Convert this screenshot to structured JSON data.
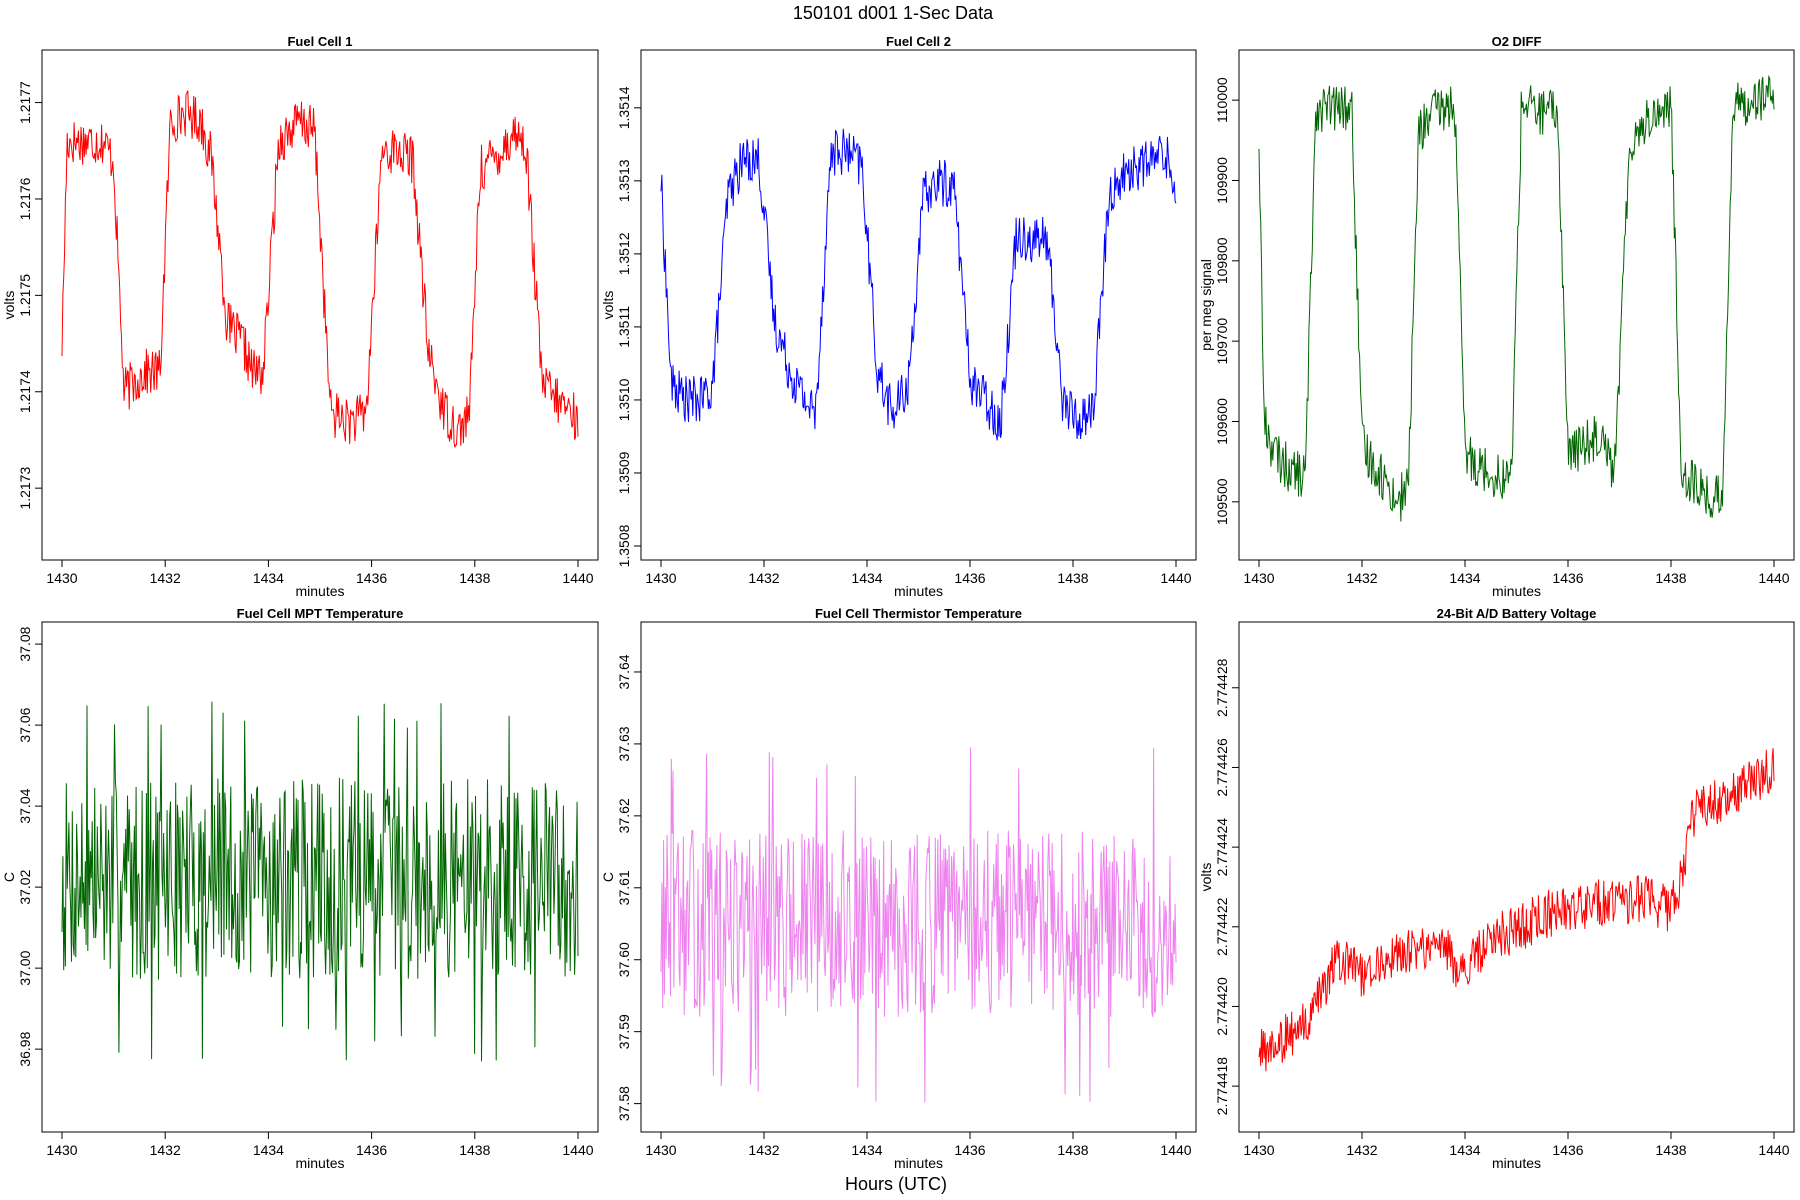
{
  "title": "150101    d001    1-Sec Data",
  "global_xlabel": "Hours (UTC)",
  "chart_data": [
    {
      "type": "line",
      "title": "Fuel Cell 1",
      "xlabel": "minutes",
      "ylabel": "volts",
      "color": "#ff0000",
      "xlim": [
        1430,
        1440
      ],
      "ylim": [
        1.21724,
        1.21774
      ],
      "xticks": [
        1430,
        1432,
        1434,
        1436,
        1438,
        1440
      ],
      "yticks": [
        1.2173,
        1.2174,
        1.2175,
        1.2176,
        1.2177
      ],
      "tick_decimals": 4,
      "series": [
        {
          "name": "Fuel Cell 1",
          "x": [
            1430,
            1430.1,
            1430.4,
            1430.8,
            1431,
            1431.2,
            1431.6,
            1431.9,
            1432.1,
            1432.4,
            1432.7,
            1432.9,
            1433.2,
            1433.5,
            1433.7,
            1433.9,
            1434.2,
            1434.6,
            1434.9,
            1435.2,
            1435.5,
            1435.7,
            1435.9,
            1436.2,
            1436.5,
            1436.8,
            1437.1,
            1437.4,
            1437.7,
            1437.9,
            1438.1,
            1438.5,
            1438.8,
            1439,
            1439.3,
            1439.6,
            1439.9,
            1440
          ],
          "values": [
            1.21745,
            1.21766,
            1.21766,
            1.21766,
            1.21764,
            1.2174,
            1.21742,
            1.21742,
            1.21768,
            1.21769,
            1.21768,
            1.21764,
            1.21747,
            1.21745,
            1.21742,
            1.21742,
            1.21766,
            1.21768,
            1.21767,
            1.21738,
            1.21737,
            1.21737,
            1.21738,
            1.21765,
            1.21765,
            1.21764,
            1.21744,
            1.21738,
            1.21736,
            1.21738,
            1.21763,
            1.21765,
            1.21767,
            1.21765,
            1.21741,
            1.21739,
            1.21738,
            1.21736
          ]
        }
      ]
    },
    {
      "type": "line",
      "title": "Fuel Cell 2",
      "xlabel": "minutes",
      "ylabel": "volts",
      "color": "#0000ff",
      "xlim": [
        1430,
        1440
      ],
      "ylim": [
        1.3508,
        1.35146
      ],
      "xticks": [
        1430,
        1432,
        1434,
        1436,
        1438,
        1440
      ],
      "yticks": [
        1.3508,
        1.3509,
        1.351,
        1.3511,
        1.3512,
        1.3513,
        1.3514
      ],
      "tick_decimals": 4,
      "series": [
        {
          "name": "Fuel Cell 2",
          "x": [
            1430,
            1430.2,
            1430.5,
            1430.8,
            1431,
            1431.3,
            1431.6,
            1431.9,
            1432.2,
            1432.5,
            1432.8,
            1433,
            1433.3,
            1433.6,
            1433.9,
            1434.2,
            1434.5,
            1434.8,
            1435.1,
            1435.4,
            1435.7,
            1436,
            1436.3,
            1436.6,
            1436.9,
            1437.2,
            1437.5,
            1437.8,
            1438.1,
            1438.4,
            1438.7,
            1439,
            1439.3,
            1439.6,
            1439.8,
            1440
          ],
          "values": [
            1.3513,
            1.35102,
            1.351,
            1.351,
            1.35102,
            1.35128,
            1.35133,
            1.35133,
            1.35111,
            1.35104,
            1.351,
            1.35098,
            1.35134,
            1.35134,
            1.35132,
            1.35104,
            1.35098,
            1.35102,
            1.35128,
            1.3513,
            1.35129,
            1.35103,
            1.351,
            1.35097,
            1.35123,
            1.35122,
            1.35122,
            1.351,
            1.35097,
            1.35099,
            1.35128,
            1.35131,
            1.35132,
            1.35133,
            1.35134,
            1.35128
          ]
        }
      ]
    },
    {
      "type": "line",
      "title": "O2 DIFF",
      "xlabel": "minutes",
      "ylabel": "per meg signal",
      "color": "#006400",
      "xlim": [
        1430,
        1440
      ],
      "ylim": [
        109445,
        110045
      ],
      "xticks": [
        1430,
        1432,
        1434,
        1436,
        1438,
        1440
      ],
      "yticks": [
        109500,
        109600,
        109700,
        109800,
        109900,
        110000
      ],
      "tick_decimals": 0,
      "series": [
        {
          "name": "O2 DIFF",
          "x": [
            1430,
            1430.1,
            1430.3,
            1430.6,
            1430.9,
            1431.1,
            1431.4,
            1431.8,
            1432,
            1432.3,
            1432.7,
            1432.9,
            1433.1,
            1433.4,
            1433.8,
            1434,
            1434.3,
            1434.7,
            1434.9,
            1435.1,
            1435.4,
            1435.8,
            1436,
            1436.3,
            1436.7,
            1436.9,
            1437.2,
            1437.6,
            1438,
            1438.2,
            1438.5,
            1438.8,
            1439,
            1439.2,
            1439.5,
            1439.8,
            1440
          ],
          "values": [
            109950,
            109600,
            109560,
            109540,
            109530,
            109990,
            109990,
            109990,
            109570,
            109540,
            109500,
            109520,
            109960,
            109985,
            109995,
            109560,
            109545,
            109530,
            109530,
            110000,
            109985,
            109985,
            109560,
            109570,
            109590,
            109530,
            109950,
            109980,
            109995,
            109540,
            109520,
            109500,
            109510,
            109990,
            110000,
            110005,
            110000
          ]
        }
      ]
    },
    {
      "type": "line",
      "title": "Fuel Cell MPT Temperature",
      "xlabel": "minutes",
      "ylabel": "C",
      "color": "#006400",
      "xlim": [
        1430,
        1440
      ],
      "ylim": [
        36.963,
        37.082
      ],
      "xticks": [
        1430,
        1432,
        1434,
        1436,
        1438,
        1440
      ],
      "yticks": [
        36.98,
        37.0,
        37.02,
        37.04,
        37.06,
        37.08
      ],
      "tick_decimals": 2,
      "noise": {
        "center": 37.022,
        "amplitude": 0.025,
        "n": 600,
        "seed": 7,
        "spike": 0.045
      },
      "series": [
        {
          "name": "Fuel Cell MPT Temperature",
          "x": [],
          "values": []
        }
      ]
    },
    {
      "type": "line",
      "title": "Fuel Cell Thermistor Temperature",
      "xlabel": "minutes",
      "ylabel": "C",
      "color": "#ee82ee",
      "xlim": [
        1430,
        1440
      ],
      "ylim": [
        37.578,
        37.645
      ],
      "xticks": [
        1430,
        1432,
        1434,
        1436,
        1438,
        1440
      ],
      "yticks": [
        37.58,
        37.59,
        37.6,
        37.61,
        37.62,
        37.63,
        37.64
      ],
      "tick_decimals": 2,
      "noise": {
        "center": 37.605,
        "amplitude": 0.013,
        "n": 600,
        "seed": 13,
        "spike": 0.025
      },
      "series": [
        {
          "name": "Fuel Cell Thermistor Temperature",
          "x": [],
          "values": []
        }
      ]
    },
    {
      "type": "line",
      "title": "24-Bit A/D Battery Voltage",
      "xlabel": "minutes",
      "ylabel": "volts",
      "color": "#ff0000",
      "xlim": [
        1430,
        1440
      ],
      "ylim": [
        2.7744172,
        2.7744293
      ],
      "xticks": [
        1430,
        1432,
        1434,
        1436,
        1438,
        1440
      ],
      "yticks": [
        2.774418,
        2.77442,
        2.774422,
        2.774424,
        2.774426,
        2.774428
      ],
      "tick_decimals": 6,
      "series": [
        {
          "name": "24-Bit A/D Battery Voltage",
          "x": [
            1430,
            1430.5,
            1431,
            1431.3,
            1431.5,
            1432,
            1432.5,
            1433,
            1433.5,
            1434,
            1434.5,
            1435,
            1435.5,
            1436,
            1436.5,
            1437,
            1437.5,
            1438,
            1438.2,
            1438.4,
            1438.6,
            1439,
            1439.5,
            1440
          ],
          "values": [
            2.7744188,
            2.7744192,
            2.7744196,
            2.7744206,
            2.7744212,
            2.7744208,
            2.7744212,
            2.7744214,
            2.7744216,
            2.7744208,
            2.7744218,
            2.7744219,
            2.7744223,
            2.7744224,
            2.7744226,
            2.7744226,
            2.7744227,
            2.7744224,
            2.7744233,
            2.7744246,
            2.7744251,
            2.7744252,
            2.7744256,
            2.774426
          ]
        }
      ]
    }
  ]
}
